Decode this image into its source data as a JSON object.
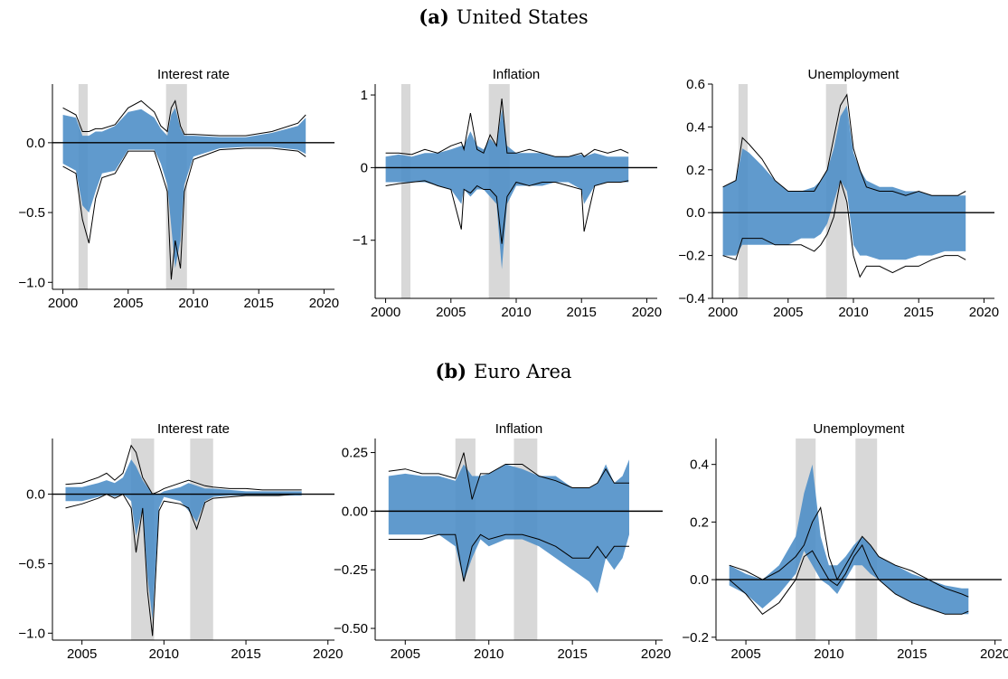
{
  "panels": [
    {
      "letter": "(a)",
      "name": "United States"
    },
    {
      "letter": "(b)",
      "name": "Euro Area"
    }
  ],
  "colors": {
    "band": "#4f8fc8",
    "recession": "#d8d8d8",
    "line": "#000000"
  },
  "chart_data": [
    {
      "type": "area",
      "title": "Interest rate",
      "panel": "United States",
      "xlim": [
        1999.2,
        2020.8
      ],
      "ylim": [
        -1.05,
        0.42
      ],
      "xticks": [
        2000,
        2005,
        2010,
        2015,
        2020
      ],
      "xticklabels": [
        "2000",
        "2005",
        "2010",
        "2015",
        "2020"
      ],
      "yticks": [
        -1.0,
        -0.5,
        0.0
      ],
      "yticklabels": [
        "−1.0",
        "−0.5",
        "0.0"
      ],
      "recessions": [
        [
          2001.2,
          2001.9
        ],
        [
          2007.9,
          2009.5
        ]
      ],
      "x": [
        2000,
        2001,
        2001.5,
        2002,
        2002.5,
        2003,
        2004,
        2005,
        2006,
        2007,
        2007.5,
        2008,
        2008.3,
        2008.6,
        2009,
        2009.3,
        2010,
        2012,
        2014,
        2016,
        2018,
        2018.6
      ],
      "series": [
        {
          "kind": "band",
          "upper": [
            0.2,
            0.18,
            0.05,
            0.05,
            0.08,
            0.08,
            0.12,
            0.22,
            0.24,
            0.18,
            0.1,
            0.05,
            0.2,
            0.25,
            0.1,
            0.05,
            0.05,
            0.04,
            0.04,
            0.07,
            0.12,
            0.18
          ],
          "lower": [
            -0.15,
            -0.2,
            -0.45,
            -0.5,
            -0.35,
            -0.22,
            -0.2,
            -0.05,
            -0.05,
            -0.05,
            -0.15,
            -0.3,
            -0.6,
            -0.9,
            -0.7,
            -0.3,
            -0.1,
            -0.04,
            -0.03,
            -0.03,
            -0.05,
            -0.08
          ]
        },
        {
          "kind": "line",
          "values": [
            0.25,
            0.2,
            0.08,
            0.08,
            0.1,
            0.1,
            0.13,
            0.25,
            0.3,
            0.22,
            0.12,
            0.08,
            0.25,
            0.3,
            0.12,
            0.06,
            0.06,
            0.05,
            0.05,
            0.08,
            0.14,
            0.2
          ]
        },
        {
          "kind": "line",
          "values": [
            -0.17,
            -0.22,
            -0.55,
            -0.72,
            -0.4,
            -0.25,
            -0.22,
            -0.06,
            -0.06,
            -0.06,
            -0.2,
            -0.35,
            -0.98,
            -0.7,
            -0.9,
            -0.35,
            -0.12,
            -0.05,
            -0.04,
            -0.04,
            -0.06,
            -0.1
          ]
        }
      ]
    },
    {
      "type": "area",
      "title": "Inflation",
      "panel": "United States",
      "xlim": [
        1999.2,
        2020.8
      ],
      "ylim": [
        -1.8,
        1.15
      ],
      "xticks": [
        2000,
        2005,
        2010,
        2015,
        2020
      ],
      "xticklabels": [
        "2000",
        "2005",
        "2010",
        "2015",
        "2020"
      ],
      "yticks": [
        -1,
        0,
        1
      ],
      "yticklabels": [
        "−1",
        "0",
        "1"
      ],
      "recessions": [
        [
          2001.2,
          2001.9
        ],
        [
          2007.9,
          2009.5
        ]
      ],
      "x": [
        2000,
        2001,
        2002,
        2003,
        2004,
        2005,
        2005.8,
        2006,
        2006.5,
        2007,
        2007.5,
        2008,
        2008.5,
        2008.9,
        2009.3,
        2010,
        2011,
        2012,
        2013,
        2014,
        2015,
        2015.2,
        2016,
        2017,
        2018,
        2018.6
      ],
      "series": [
        {
          "kind": "band",
          "upper": [
            0.15,
            0.18,
            0.15,
            0.2,
            0.2,
            0.25,
            0.3,
            0.3,
            0.5,
            0.3,
            0.25,
            0.4,
            0.3,
            0.8,
            0.3,
            0.2,
            0.2,
            0.2,
            0.15,
            0.15,
            0.18,
            0.15,
            0.2,
            0.15,
            0.15,
            0.15
          ],
          "lower": [
            -0.2,
            -0.2,
            -0.2,
            -0.2,
            -0.25,
            -0.3,
            -0.5,
            -0.3,
            -0.4,
            -0.3,
            -0.3,
            -0.4,
            -0.5,
            -1.4,
            -0.5,
            -0.25,
            -0.25,
            -0.25,
            -0.2,
            -0.2,
            -0.3,
            -0.5,
            -0.25,
            -0.2,
            -0.2,
            -0.2
          ]
        },
        {
          "kind": "line",
          "values": [
            0.2,
            0.2,
            0.18,
            0.25,
            0.2,
            0.3,
            0.35,
            0.25,
            0.75,
            0.25,
            0.2,
            0.45,
            0.3,
            0.95,
            0.2,
            0.2,
            0.25,
            0.2,
            0.15,
            0.15,
            0.2,
            0.15,
            0.25,
            0.2,
            0.25,
            0.2
          ]
        },
        {
          "kind": "line",
          "values": [
            -0.25,
            -0.22,
            -0.2,
            -0.18,
            -0.25,
            -0.3,
            -0.85,
            -0.3,
            -0.35,
            -0.25,
            -0.3,
            -0.3,
            -0.4,
            -1.05,
            -0.4,
            -0.2,
            -0.25,
            -0.2,
            -0.2,
            -0.25,
            -0.3,
            -0.88,
            -0.25,
            -0.2,
            -0.2,
            -0.18
          ]
        }
      ]
    },
    {
      "type": "area",
      "title": "Unemployment",
      "panel": "United States",
      "xlim": [
        1999.2,
        2020.8
      ],
      "ylim": [
        -0.4,
        0.6
      ],
      "xticks": [
        2000,
        2005,
        2010,
        2015,
        2020
      ],
      "xticklabels": [
        "2000",
        "2005",
        "2010",
        "2015",
        "2020"
      ],
      "yticks": [
        -0.4,
        -0.2,
        0.0,
        0.2,
        0.4,
        0.6
      ],
      "yticklabels": [
        "−0.4",
        "−0.2",
        "0.0",
        "0.2",
        "0.4",
        "0.6"
      ],
      "recessions": [
        [
          2001.2,
          2001.9
        ],
        [
          2007.9,
          2009.5
        ]
      ],
      "x": [
        2000,
        2001,
        2001.5,
        2002,
        2003,
        2004,
        2005,
        2006,
        2007,
        2007.5,
        2008,
        2008.5,
        2009,
        2009.5,
        2010,
        2010.5,
        2011,
        2012,
        2013,
        2014,
        2015,
        2016,
        2017,
        2018,
        2018.6
      ],
      "series": [
        {
          "kind": "band",
          "upper": [
            0.12,
            0.15,
            0.3,
            0.28,
            0.22,
            0.15,
            0.1,
            0.1,
            0.12,
            0.15,
            0.2,
            0.3,
            0.45,
            0.5,
            0.28,
            0.2,
            0.15,
            0.12,
            0.12,
            0.1,
            0.1,
            0.08,
            0.08,
            0.08,
            0.08
          ],
          "lower": [
            -0.2,
            -0.2,
            -0.15,
            -0.15,
            -0.15,
            -0.15,
            -0.15,
            -0.12,
            -0.12,
            -0.1,
            -0.05,
            0.05,
            0.15,
            0.1,
            -0.15,
            -0.2,
            -0.2,
            -0.22,
            -0.22,
            -0.22,
            -0.2,
            -0.2,
            -0.18,
            -0.18,
            -0.18
          ]
        },
        {
          "kind": "line",
          "values": [
            0.12,
            0.15,
            0.35,
            0.32,
            0.25,
            0.15,
            0.1,
            0.1,
            0.1,
            0.15,
            0.2,
            0.35,
            0.5,
            0.55,
            0.3,
            0.2,
            0.12,
            0.1,
            0.1,
            0.08,
            0.1,
            0.08,
            0.08,
            0.08,
            0.1
          ]
        },
        {
          "kind": "line",
          "values": [
            -0.2,
            -0.22,
            -0.12,
            -0.12,
            -0.12,
            -0.15,
            -0.15,
            -0.15,
            -0.18,
            -0.15,
            -0.1,
            -0.02,
            0.15,
            0.05,
            -0.2,
            -0.3,
            -0.25,
            -0.25,
            -0.28,
            -0.25,
            -0.25,
            -0.22,
            -0.2,
            -0.2,
            -0.22
          ]
        }
      ]
    },
    {
      "type": "area",
      "title": "Interest rate",
      "panel": "Euro Area",
      "xlim": [
        2003.2,
        2020.4
      ],
      "ylim": [
        -1.05,
        0.4
      ],
      "xticks": [
        2005,
        2010,
        2015,
        2020
      ],
      "xticklabels": [
        "2005",
        "2010",
        "2015",
        "2020"
      ],
      "yticks": [
        -1.0,
        -0.5,
        0.0
      ],
      "yticklabels": [
        "−1.0",
        "−0.5",
        "0.0"
      ],
      "recessions": [
        [
          2008.0,
          2009.4
        ],
        [
          2011.6,
          2013.0
        ]
      ],
      "x": [
        2004,
        2005,
        2006,
        2006.5,
        2007,
        2007.5,
        2008,
        2008.3,
        2008.7,
        2009,
        2009.3,
        2009.7,
        2010,
        2011,
        2011.5,
        2012,
        2012.5,
        2013,
        2014,
        2015,
        2016,
        2017,
        2018,
        2018.4
      ],
      "series": [
        {
          "kind": "band",
          "upper": [
            0.05,
            0.05,
            0.08,
            0.1,
            0.08,
            0.12,
            0.25,
            0.2,
            0.1,
            0.05,
            0.0,
            0.0,
            0.02,
            0.05,
            0.08,
            0.06,
            0.04,
            0.04,
            0.03,
            0.02,
            0.02,
            0.02,
            0.02,
            0.02
          ],
          "lower": [
            -0.05,
            -0.05,
            -0.02,
            0.0,
            -0.02,
            0.0,
            -0.05,
            -0.3,
            -0.1,
            -0.6,
            -0.9,
            -0.1,
            -0.02,
            -0.05,
            -0.12,
            -0.2,
            -0.05,
            -0.02,
            -0.01,
            -0.01,
            -0.01,
            -0.01,
            -0.01,
            -0.01
          ]
        },
        {
          "kind": "line",
          "values": [
            0.07,
            0.08,
            0.12,
            0.15,
            0.1,
            0.15,
            0.35,
            0.3,
            0.12,
            0.06,
            0.0,
            0.02,
            0.04,
            0.08,
            0.1,
            0.08,
            0.06,
            0.05,
            0.04,
            0.04,
            0.03,
            0.03,
            0.03,
            0.03
          ]
        },
        {
          "kind": "line",
          "values": [
            -0.1,
            -0.07,
            -0.03,
            0.0,
            -0.03,
            0.0,
            -0.1,
            -0.42,
            -0.1,
            -0.7,
            -1.02,
            -0.12,
            -0.05,
            -0.07,
            -0.1,
            -0.25,
            -0.06,
            -0.03,
            -0.02,
            -0.01,
            -0.01,
            -0.01,
            0.0,
            0.0
          ]
        }
      ]
    },
    {
      "type": "area",
      "title": "Inflation",
      "panel": "Euro Area",
      "xlim": [
        2003.2,
        2020.4
      ],
      "ylim": [
        -0.55,
        0.31
      ],
      "xticks": [
        2005,
        2010,
        2015,
        2020
      ],
      "xticklabels": [
        "2005",
        "2010",
        "2015",
        "2020"
      ],
      "yticks": [
        -0.5,
        -0.25,
        0.0,
        0.25
      ],
      "yticklabels": [
        "−0.50",
        "−0.25",
        "0.00",
        "0.25"
      ],
      "recessions": [
        [
          2008.0,
          2009.2
        ],
        [
          2011.5,
          2012.9
        ]
      ],
      "x": [
        2004,
        2005,
        2006,
        2007,
        2008,
        2008.5,
        2009,
        2009.5,
        2010,
        2011,
        2012,
        2013,
        2014,
        2015,
        2016,
        2016.5,
        2017,
        2017.5,
        2018,
        2018.4
      ],
      "series": [
        {
          "kind": "band",
          "upper": [
            0.15,
            0.16,
            0.15,
            0.15,
            0.13,
            0.2,
            0.15,
            0.15,
            0.16,
            0.2,
            0.18,
            0.15,
            0.15,
            0.1,
            0.1,
            0.12,
            0.2,
            0.12,
            0.15,
            0.22
          ],
          "lower": [
            -0.1,
            -0.1,
            -0.1,
            -0.1,
            -0.15,
            -0.3,
            -0.2,
            -0.12,
            -0.15,
            -0.12,
            -0.12,
            -0.15,
            -0.2,
            -0.25,
            -0.3,
            -0.35,
            -0.2,
            -0.25,
            -0.2,
            -0.1
          ]
        },
        {
          "kind": "line",
          "values": [
            0.17,
            0.18,
            0.16,
            0.16,
            0.14,
            0.25,
            0.05,
            0.16,
            0.16,
            0.2,
            0.2,
            0.15,
            0.13,
            0.1,
            0.1,
            0.12,
            0.18,
            0.12,
            0.12,
            0.12
          ]
        },
        {
          "kind": "line",
          "values": [
            -0.12,
            -0.12,
            -0.12,
            -0.1,
            -0.1,
            -0.3,
            -0.15,
            -0.1,
            -0.12,
            -0.1,
            -0.1,
            -0.12,
            -0.15,
            -0.2,
            -0.2,
            -0.15,
            -0.2,
            -0.15,
            -0.15,
            -0.15
          ]
        }
      ]
    },
    {
      "type": "area",
      "title": "Unemployment",
      "panel": "Euro Area",
      "xlim": [
        2003.2,
        2020.4
      ],
      "ylim": [
        -0.21,
        0.49
      ],
      "xticks": [
        2005,
        2010,
        2015,
        2020
      ],
      "xticklabels": [
        "2005",
        "2010",
        "2015",
        "2020"
      ],
      "yticks": [
        -0.2,
        0.0,
        0.2,
        0.4
      ],
      "yticklabels": [
        "−0.2",
        "0.0",
        "0.2",
        "0.4"
      ],
      "recessions": [
        [
          2008.0,
          2009.2
        ],
        [
          2011.6,
          2012.9
        ]
      ],
      "x": [
        2004,
        2005,
        2006,
        2007,
        2008,
        2008.5,
        2009,
        2009.5,
        2010,
        2010.5,
        2011,
        2011.5,
        2012,
        2012.5,
        2013,
        2014,
        2015,
        2016,
        2017,
        2018,
        2018.4
      ],
      "series": [
        {
          "kind": "band",
          "upper": [
            0.05,
            0.02,
            0.0,
            0.05,
            0.15,
            0.3,
            0.4,
            0.15,
            0.05,
            0.05,
            0.08,
            0.12,
            0.15,
            0.12,
            0.08,
            0.05,
            0.02,
            0.0,
            -0.02,
            -0.03,
            -0.03
          ],
          "lower": [
            -0.02,
            -0.05,
            -0.1,
            -0.05,
            0.02,
            0.1,
            0.05,
            0.0,
            -0.02,
            -0.05,
            0.0,
            0.05,
            0.05,
            0.02,
            0.0,
            -0.05,
            -0.08,
            -0.1,
            -0.12,
            -0.12,
            -0.12
          ]
        },
        {
          "kind": "line",
          "values": [
            0.05,
            0.03,
            0.0,
            0.03,
            0.08,
            0.12,
            0.2,
            0.25,
            0.08,
            0.0,
            0.05,
            0.1,
            0.15,
            0.12,
            0.08,
            0.05,
            0.03,
            0.0,
            -0.03,
            -0.05,
            -0.06
          ]
        },
        {
          "kind": "line",
          "values": [
            0.0,
            -0.05,
            -0.12,
            -0.08,
            0.0,
            0.08,
            0.1,
            0.05,
            0.0,
            -0.02,
            0.02,
            0.08,
            0.12,
            0.05,
            0.0,
            -0.05,
            -0.08,
            -0.1,
            -0.12,
            -0.12,
            -0.11
          ]
        }
      ]
    }
  ]
}
